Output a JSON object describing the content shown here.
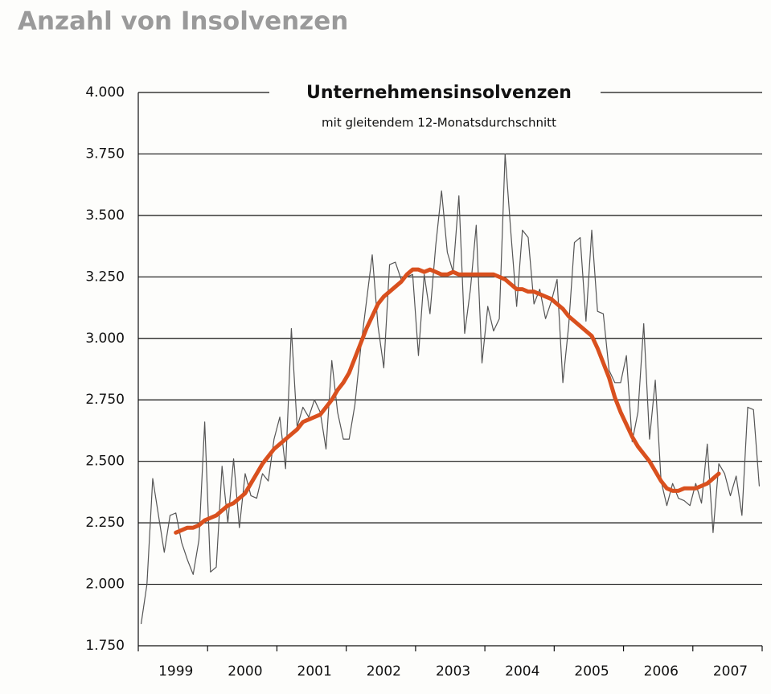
{
  "page_title": "Anzahl von Insolvenzen",
  "chart_data": {
    "type": "line",
    "title": "Unternehmensinsolvenzen",
    "subtitle": "mit gleitendem 12-Monatsdurchschnitt",
    "categories": [
      null,
      null,
      null,
      null,
      null,
      null,
      "1999",
      null,
      null,
      null,
      null,
      null,
      null,
      null,
      null,
      null,
      null,
      null,
      "2000",
      null,
      null,
      null,
      null,
      null,
      null,
      null,
      null,
      null,
      null,
      null,
      "2001",
      null,
      null,
      null,
      null,
      null,
      null,
      null,
      null,
      null,
      null,
      null,
      "2002",
      null,
      null,
      null,
      null,
      null,
      null,
      null,
      null,
      null,
      null,
      null,
      "2003",
      null,
      null,
      null,
      null,
      null,
      null,
      null,
      null,
      null,
      null,
      null,
      "2004",
      null,
      null,
      null,
      null,
      null,
      null,
      null,
      null,
      null,
      null,
      null,
      "2005",
      null,
      null,
      null,
      null,
      null,
      null,
      null,
      null,
      null,
      null,
      null,
      "2006",
      null,
      null,
      null,
      null,
      null,
      null,
      null,
      null,
      null,
      null,
      null,
      "2007",
      null,
      null,
      null,
      null,
      null
    ],
    "series": [
      {
        "color": "#555555",
        "width": 1.2,
        "values": [
          1840,
          2000,
          2430,
          2280,
          2130,
          2280,
          2290,
          2170,
          2100,
          2040,
          2180,
          2660,
          2050,
          2070,
          2480,
          2250,
          2510,
          2230,
          2450,
          2360,
          2350,
          2450,
          2420,
          2590,
          2680,
          2470,
          3040,
          2640,
          2720,
          2680,
          2750,
          2700,
          2550,
          2910,
          2700,
          2590,
          2590,
          2730,
          2960,
          3150,
          3340,
          3050,
          2880,
          3300,
          3310,
          3240,
          3250,
          3260,
          2930,
          3260,
          3100,
          3380,
          3600,
          3350,
          3270,
          3580,
          3020,
          3200,
          3460,
          2900,
          3130,
          3030,
          3080,
          3750,
          3430,
          3130,
          3440,
          3410,
          3140,
          3200,
          3080,
          3150,
          3240,
          2820,
          3050,
          3390,
          3410,
          3070,
          3440,
          3110,
          3100,
          2870,
          2820,
          2820,
          2930,
          2580,
          2700,
          3060,
          2590,
          2830,
          2420,
          2320,
          2410,
          2350,
          2340,
          2320,
          2410,
          2330,
          2570,
          2210,
          2490,
          2450,
          2360,
          2440,
          2280,
          2720,
          2710,
          2400
        ]
      },
      {
        "color": "#d9501e",
        "width": 5,
        "values": [
          null,
          null,
          null,
          null,
          null,
          null,
          2210,
          2220,
          2230,
          2230,
          2240,
          2260,
          2270,
          2280,
          2300,
          2320,
          2330,
          2350,
          2370,
          2410,
          2450,
          2490,
          2520,
          2550,
          2570,
          2590,
          2610,
          2630,
          2660,
          2670,
          2680,
          2690,
          2720,
          2750,
          2790,
          2820,
          2860,
          2920,
          2980,
          3040,
          3090,
          3140,
          3170,
          3190,
          3210,
          3230,
          3260,
          3280,
          3280,
          3270,
          3280,
          3270,
          3260,
          3260,
          3270,
          3260,
          3260,
          3260,
          3260,
          3260,
          3260,
          3260,
          3250,
          3240,
          3220,
          3200,
          3200,
          3190,
          3190,
          3180,
          3170,
          3160,
          3140,
          3120,
          3090,
          3070,
          3050,
          3030,
          3010,
          2960,
          2900,
          2840,
          2760,
          2700,
          2650,
          2600,
          2560,
          2530,
          2500,
          2460,
          2420,
          2390,
          2380,
          2380,
          2390,
          2390,
          2390,
          2400,
          2410,
          2430,
          2450,
          null,
          null,
          null,
          null,
          null,
          null,
          null
        ]
      }
    ],
    "ylim": [
      1750,
      4000
    ],
    "yticks": [
      {
        "value": 1750,
        "label": "1.750"
      },
      {
        "value": 2000,
        "label": "2.000"
      },
      {
        "value": 2250,
        "label": "2.250"
      },
      {
        "value": 2500,
        "label": "2.500"
      },
      {
        "value": 2750,
        "label": "2.750"
      },
      {
        "value": 3000,
        "label": "3.000"
      },
      {
        "value": 3250,
        "label": "3.250"
      },
      {
        "value": 3500,
        "label": "3.500"
      },
      {
        "value": 3750,
        "label": "3.750"
      },
      {
        "value": 4000,
        "label": "4.000"
      }
    ],
    "grid": true
  }
}
